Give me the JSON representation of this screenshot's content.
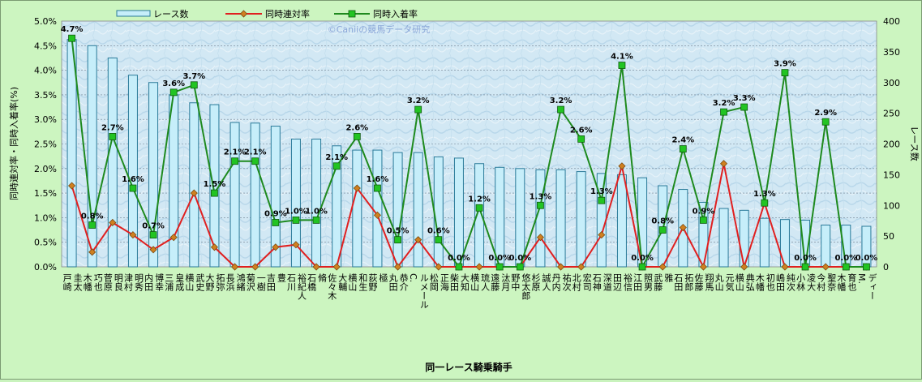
{
  "chart_data": {
    "type": "bar",
    "watermark": "©Caniiの競馬データ研究",
    "xlabel": "同一レース騎乗騎手",
    "ylabel_left": "同時連対率・同時入着率(%)",
    "ylabel_right": "レース数",
    "ylim_left": [
      0,
      5
    ],
    "ylim_right": [
      0,
      400
    ],
    "yticks_left": [
      "0.0%",
      "0.5%",
      "1.0%",
      "1.5%",
      "2.0%",
      "2.5%",
      "3.0%",
      "3.5%",
      "4.0%",
      "4.5%",
      "5.0%"
    ],
    "yticks_right": [
      "0",
      "50",
      "100",
      "150",
      "200",
      "250",
      "300",
      "350",
      "400"
    ],
    "legend": {
      "position": "top",
      "items": [
        "レース数",
        "同時連対率",
        "同時入着率"
      ]
    },
    "colors": {
      "bar_fill": "#c6eefa",
      "bar_stroke": "#2a7a99",
      "rentai": "#e02020",
      "rentai_marker": "#d08020",
      "nyuchaku": "#1e8a1e",
      "nyuchaku_marker": "#22c422"
    },
    "categories": [
      "戸崎 圭太",
      "木幡 巧也",
      "菅原 明良",
      "津村 明秀",
      "内田 博幸",
      "三浦 皇成",
      "横山 武史",
      "大野 拓弥",
      "長浜 鴻緒",
      "菊沢 一樹",
      "吉田 豊",
      "石川 裕紀人",
      "石橋 脩",
      "佐々木 大輔",
      "横山 和生",
      "荻野 極",
      "丸田 恭介",
      "C. ルメール",
      "松岡 正海",
      "柴田 大知",
      "横山 琉人",
      "遠藤 汰月",
      "野中 悠太郎",
      "杉原 誠人",
      "丹内 祐次",
      "北村 宏司",
      "石神 深道",
      "田辺 裕信",
      "江田 照男",
      "武藤 雅",
      "石田 拓郎",
      "佐藤 翔馬",
      "丸山 元気",
      "横山 典弘",
      "木幡 初也",
      "嶋田 純次",
      "小林 凌大",
      "今村 聖奈",
      "木幡 育也",
      "M. ディー"
    ],
    "series": [
      {
        "name": "レース数",
        "axis": "right",
        "values": [
          370,
          360,
          340,
          312,
          300,
          280,
          267,
          264,
          235,
          234,
          229,
          208,
          208,
          197,
          190,
          190,
          186,
          186,
          179,
          177,
          168,
          162,
          160,
          158,
          158,
          155,
          152,
          150,
          145,
          132,
          126,
          105,
          95,
          92,
          79,
          77,
          76,
          68,
          68,
          66
        ]
      },
      {
        "name": "同時連対率",
        "axis": "left",
        "values": [
          1.65,
          0.3,
          0.9,
          0.65,
          0.35,
          0.6,
          1.5,
          0.4,
          0,
          0,
          0.4,
          0.45,
          0,
          0,
          1.6,
          1.05,
          0,
          0.55,
          0,
          0,
          0,
          0,
          0,
          0.6,
          0,
          0,
          0.65,
          2.05,
          0,
          0,
          0.8,
          0,
          2.1,
          0,
          1.3,
          0,
          0,
          0,
          0,
          0
        ]
      },
      {
        "name": "同時入着率",
        "axis": "left",
        "values": [
          4.65,
          0.85,
          2.65,
          1.6,
          0.65,
          3.55,
          3.7,
          1.5,
          2.15,
          2.15,
          0.9,
          0.95,
          0.95,
          2.05,
          2.65,
          1.6,
          0.55,
          3.2,
          0.55,
          0,
          1.2,
          0,
          0,
          1.25,
          3.2,
          2.6,
          1.35,
          4.1,
          0,
          0.75,
          2.4,
          0.95,
          3.15,
          3.25,
          1.3,
          3.95,
          0,
          2.95,
          0,
          0
        ]
      }
    ],
    "data_labels": [
      "4.7%",
      "0.8%",
      "2.7%",
      "1.6%",
      "0.7%",
      "3.6%",
      "3.7%",
      "1.5%",
      "2.1%",
      "2.1%",
      "0.9%",
      "1.0%",
      "1.0%",
      "2.1%",
      "2.6%",
      "1.6%",
      "0.5%",
      "3.2%",
      "0.6%",
      "0.0%",
      "1.2%",
      "0.0%",
      "0.0%",
      "1.3%",
      "3.2%",
      "2.6%",
      "1.3%",
      "4.1%",
      "0.0%",
      "0.8%",
      "2.4%",
      "0.9%",
      "3.2%",
      "3.3%",
      "1.3%",
      "3.9%",
      "0.0%",
      "2.9%",
      "0.0%",
      "0.0%"
    ]
  }
}
